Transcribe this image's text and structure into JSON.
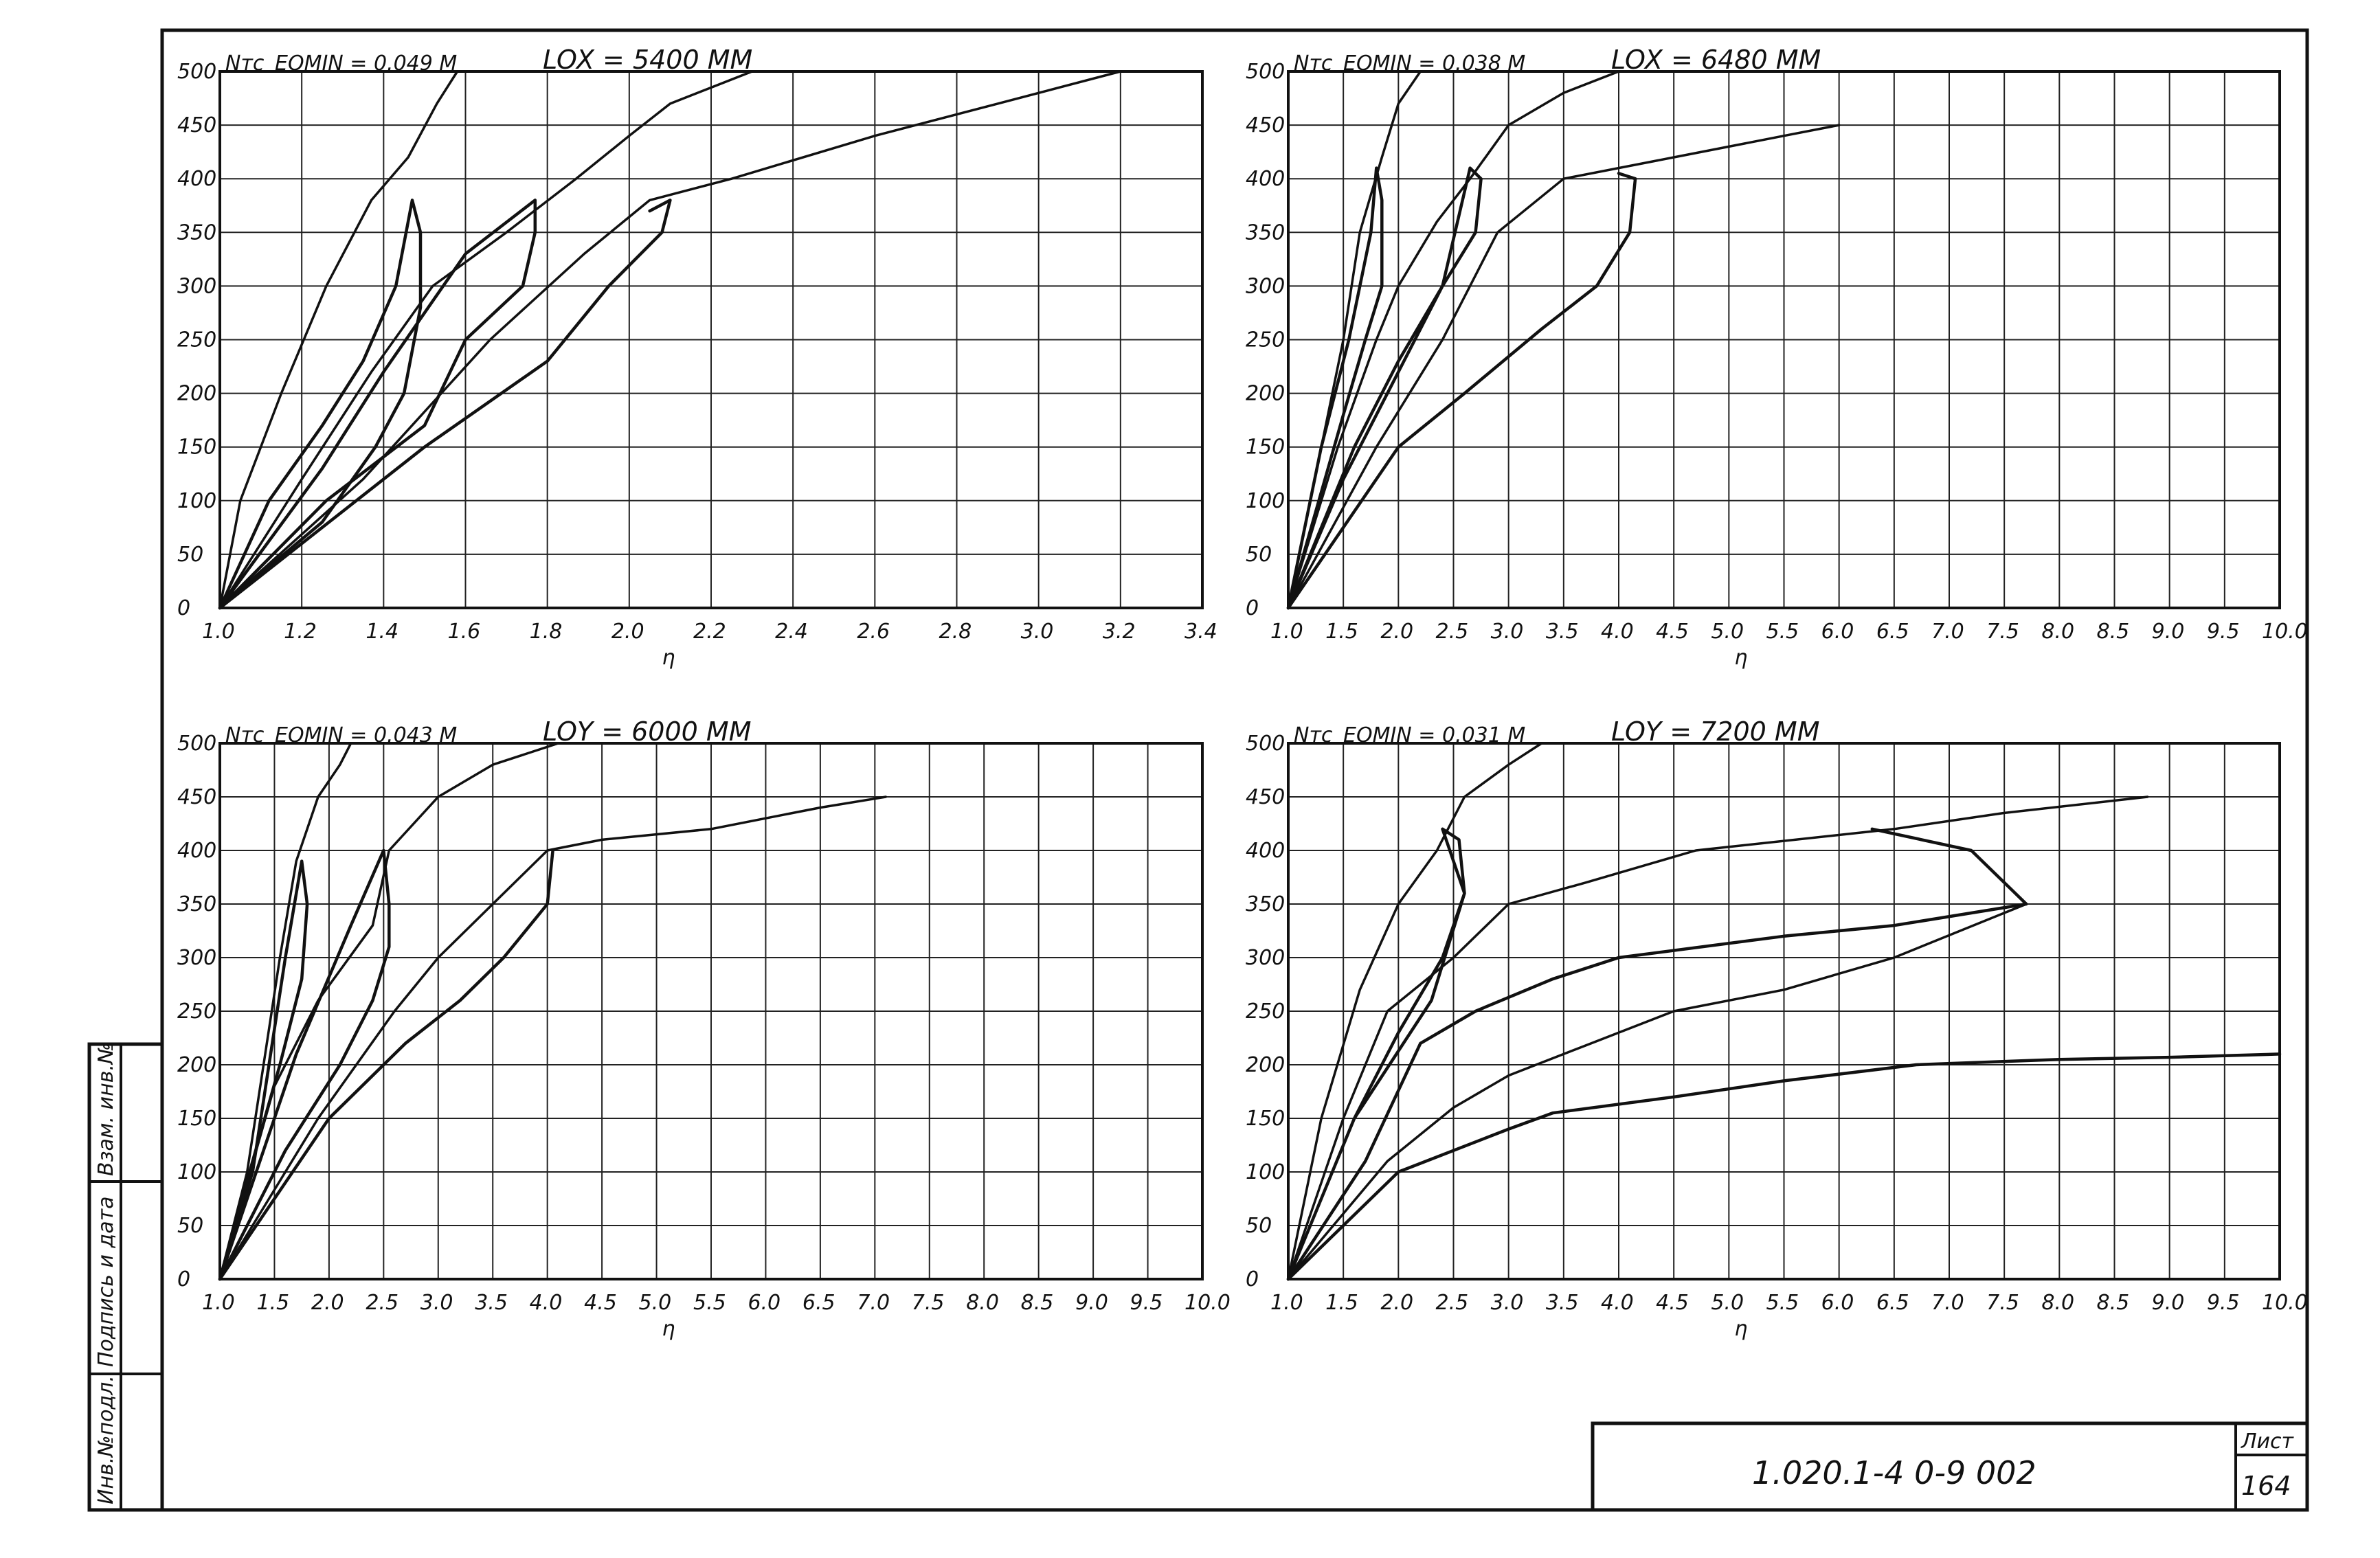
{
  "sheet": {
    "code": "1.020.1-4  0-9  002",
    "sheet_label": "Лист",
    "sheet_number": "164",
    "side_stamp": [
      "Инв.№подл.",
      "Подпись и дата",
      "Взам. инв.№"
    ]
  },
  "chart_data": [
    {
      "type": "line",
      "title": "LOX = 5400 MM",
      "corner_label": "Nтс",
      "note": "EOMIN = 0.049 M",
      "xlabel": "η",
      "xlim": [
        1.0,
        3.4
      ],
      "ylim": [
        0,
        500
      ],
      "xticks": [
        "1.0",
        "1.2",
        "1.4",
        "1.6",
        "1.8",
        "2.0",
        "2.2",
        "2.4",
        "2.6",
        "2.8",
        "3.0",
        "3.2",
        "3.4"
      ],
      "yticks": [
        "0",
        "50",
        "100",
        "150",
        "200",
        "250",
        "300",
        "350",
        "400",
        "450",
        "500"
      ],
      "series": [
        {
          "points": [
            [
              1.0,
              0
            ],
            [
              1.05,
              100
            ],
            [
              1.15,
              200
            ],
            [
              1.26,
              300
            ],
            [
              1.37,
              380
            ],
            [
              1.46,
              420
            ],
            [
              1.53,
              470
            ],
            [
              1.58,
              500
            ]
          ]
        },
        {
          "points": [
            [
              1.0,
              0
            ],
            [
              1.12,
              100
            ],
            [
              1.25,
              170
            ],
            [
              1.35,
              230
            ],
            [
              1.43,
              300
            ],
            [
              1.47,
              380
            ],
            [
              1.49,
              350
            ],
            [
              1.49,
              280
            ],
            [
              1.45,
              200
            ],
            [
              1.38,
              150
            ],
            [
              1.25,
              80
            ],
            [
              1.0,
              0
            ]
          ]
        },
        {
          "points": [
            [
              1.0,
              0
            ],
            [
              1.2,
              120
            ],
            [
              1.37,
              220
            ],
            [
              1.52,
              300
            ],
            [
              1.7,
              350
            ],
            [
              1.87,
              400
            ],
            [
              2.0,
              440
            ],
            [
              2.1,
              470
            ],
            [
              2.3,
              500
            ]
          ]
        },
        {
          "points": [
            [
              1.0,
              0
            ],
            [
              1.26,
              100
            ],
            [
              1.5,
              170
            ],
            [
              1.6,
              250
            ],
            [
              1.74,
              300
            ],
            [
              1.77,
              350
            ],
            [
              1.77,
              380
            ],
            [
              1.6,
              330
            ],
            [
              1.4,
              220
            ],
            [
              1.25,
              130
            ],
            [
              1.0,
              0
            ]
          ]
        },
        {
          "points": [
            [
              1.0,
              0
            ],
            [
              1.35,
              120
            ],
            [
              1.66,
              250
            ],
            [
              1.89,
              330
            ],
            [
              2.05,
              380
            ],
            [
              2.25,
              400
            ],
            [
              2.6,
              440
            ],
            [
              2.9,
              470
            ],
            [
              3.2,
              500
            ]
          ]
        },
        {
          "points": [
            [
              1.0,
              0
            ],
            [
              1.5,
              150
            ],
            [
              1.8,
              230
            ],
            [
              1.95,
              300
            ],
            [
              2.08,
              350
            ],
            [
              2.1,
              380
            ],
            [
              2.05,
              370
            ]
          ]
        }
      ]
    },
    {
      "type": "line",
      "title": "LOX = 6480 MM",
      "corner_label": "Nтс",
      "note": "EOMIN = 0.038 M",
      "xlabel": "η",
      "xlim": [
        1.0,
        10.0
      ],
      "ylim": [
        0,
        500
      ],
      "xticks": [
        "1.0",
        "1.5",
        "2.0",
        "2.5",
        "3.0",
        "3.5",
        "4.0",
        "4.5",
        "5.0",
        "5.5",
        "6.0",
        "6.5",
        "7.0",
        "7.5",
        "8.0",
        "8.5",
        "9.0",
        "9.5",
        "10.0"
      ],
      "yticks": [
        "0",
        "50",
        "100",
        "150",
        "200",
        "250",
        "300",
        "350",
        "400",
        "450",
        "500"
      ],
      "series": [
        {
          "points": [
            [
              1.0,
              0
            ],
            [
              1.2,
              100
            ],
            [
              1.5,
              250
            ],
            [
              1.65,
              350
            ],
            [
              1.85,
              420
            ],
            [
              2.0,
              470
            ],
            [
              2.2,
              500
            ]
          ]
        },
        {
          "points": [
            [
              1.0,
              0
            ],
            [
              1.3,
              150
            ],
            [
              1.55,
              250
            ],
            [
              1.75,
              350
            ],
            [
              1.8,
              410
            ],
            [
              1.85,
              380
            ],
            [
              1.85,
              300
            ],
            [
              1.7,
              250
            ],
            [
              1.5,
              180
            ],
            [
              1.0,
              0
            ]
          ]
        },
        {
          "points": [
            [
              1.0,
              0
            ],
            [
              1.45,
              150
            ],
            [
              1.8,
              250
            ],
            [
              2.0,
              300
            ],
            [
              2.35,
              360
            ],
            [
              2.65,
              400
            ],
            [
              3.0,
              450
            ],
            [
              3.5,
              480
            ],
            [
              4.0,
              500
            ]
          ]
        },
        {
          "points": [
            [
              1.0,
              0
            ],
            [
              1.6,
              150
            ],
            [
              2.0,
              230
            ],
            [
              2.4,
              300
            ],
            [
              2.7,
              350
            ],
            [
              2.75,
              400
            ],
            [
              2.65,
              410
            ],
            [
              2.4,
              300
            ],
            [
              2.0,
              220
            ],
            [
              1.5,
              120
            ],
            [
              1.0,
              0
            ]
          ]
        },
        {
          "points": [
            [
              1.0,
              0
            ],
            [
              1.8,
              150
            ],
            [
              2.4,
              250
            ],
            [
              2.9,
              350
            ],
            [
              3.5,
              400
            ],
            [
              4.5,
              420
            ],
            [
              5.5,
              440
            ],
            [
              6.0,
              450
            ]
          ]
        },
        {
          "points": [
            [
              1.0,
              0
            ],
            [
              2.0,
              150
            ],
            [
              2.6,
              200
            ],
            [
              3.3,
              260
            ],
            [
              3.8,
              300
            ],
            [
              4.1,
              350
            ],
            [
              4.15,
              400
            ],
            [
              4.0,
              405
            ]
          ]
        }
      ]
    },
    {
      "type": "line",
      "title": "LOY = 6000 MM",
      "corner_label": "Nтс",
      "note": "EOMIN = 0.043 M",
      "xlabel": "η",
      "xlim": [
        1.0,
        10.0
      ],
      "ylim": [
        0,
        500
      ],
      "xticks": [
        "1.0",
        "1.5",
        "2.0",
        "2.5",
        "3.0",
        "3.5",
        "4.0",
        "4.5",
        "5.0",
        "5.5",
        "6.0",
        "6.5",
        "7.0",
        "7.5",
        "8.0",
        "8.5",
        "9.0",
        "9.5",
        "10.0"
      ],
      "yticks": [
        "0",
        "50",
        "100",
        "150",
        "200",
        "250",
        "300",
        "350",
        "400",
        "450",
        "500"
      ],
      "series": [
        {
          "points": [
            [
              1.0,
              0
            ],
            [
              1.25,
              100
            ],
            [
              1.4,
              200
            ],
            [
              1.55,
              300
            ],
            [
              1.7,
              390
            ],
            [
              1.9,
              450
            ],
            [
              2.1,
              480
            ],
            [
              2.2,
              500
            ]
          ]
        },
        {
          "points": [
            [
              1.0,
              0
            ],
            [
              1.3,
              100
            ],
            [
              1.45,
              200
            ],
            [
              1.6,
              300
            ],
            [
              1.75,
              390
            ],
            [
              1.8,
              350
            ],
            [
              1.75,
              280
            ],
            [
              1.55,
              200
            ],
            [
              1.3,
              110
            ],
            [
              1.0,
              0
            ]
          ]
        },
        {
          "points": [
            [
              1.0,
              0
            ],
            [
              1.5,
              180
            ],
            [
              1.9,
              260
            ],
            [
              2.4,
              330
            ],
            [
              2.55,
              400
            ],
            [
              3.0,
              450
            ],
            [
              3.5,
              480
            ],
            [
              4.1,
              500
            ]
          ]
        },
        {
          "points": [
            [
              1.0,
              0
            ],
            [
              1.6,
              120
            ],
            [
              2.1,
              200
            ],
            [
              2.4,
              260
            ],
            [
              2.55,
              310
            ],
            [
              2.55,
              350
            ],
            [
              2.5,
              400
            ],
            [
              2.2,
              330
            ],
            [
              1.7,
              210
            ],
            [
              1.0,
              0
            ]
          ]
        },
        {
          "points": [
            [
              1.0,
              0
            ],
            [
              1.9,
              150
            ],
            [
              2.6,
              250
            ],
            [
              3.0,
              300
            ],
            [
              3.5,
              350
            ],
            [
              4.0,
              400
            ],
            [
              4.5,
              410
            ],
            [
              5.5,
              420
            ],
            [
              6.5,
              440
            ],
            [
              7.1,
              450
            ]
          ]
        },
        {
          "points": [
            [
              1.0,
              0
            ],
            [
              2.0,
              150
            ],
            [
              2.7,
              220
            ],
            [
              3.2,
              260
            ],
            [
              3.6,
              300
            ],
            [
              4.0,
              350
            ],
            [
              4.05,
              400
            ]
          ]
        }
      ]
    },
    {
      "type": "line",
      "title": "LOY = 7200 MM",
      "corner_label": "Nтс",
      "note": "EOMIN = 0.031 M",
      "xlabel": "η",
      "xlim": [
        1.0,
        10.0
      ],
      "ylim": [
        0,
        500
      ],
      "xticks": [
        "1.0",
        "1.5",
        "2.0",
        "2.5",
        "3.0",
        "3.5",
        "4.0",
        "4.5",
        "5.0",
        "5.5",
        "6.0",
        "6.5",
        "7.0",
        "7.5",
        "8.0",
        "8.5",
        "9.0",
        "9.5",
        "10.0"
      ],
      "yticks": [
        "0",
        "50",
        "100",
        "150",
        "200",
        "250",
        "300",
        "350",
        "400",
        "450",
        "500"
      ],
      "series": [
        {
          "points": [
            [
              1.0,
              0
            ],
            [
              1.3,
              150
            ],
            [
              1.65,
              270
            ],
            [
              2.0,
              350
            ],
            [
              2.35,
              400
            ],
            [
              2.6,
              450
            ],
            [
              3.0,
              480
            ],
            [
              3.3,
              500
            ]
          ]
        },
        {
          "points": [
            [
              1.0,
              0
            ],
            [
              1.6,
              150
            ],
            [
              2.0,
              230
            ],
            [
              2.4,
              300
            ],
            [
              2.6,
              360
            ],
            [
              2.55,
              410
            ],
            [
              2.4,
              420
            ],
            [
              2.6,
              360
            ],
            [
              2.3,
              260
            ],
            [
              1.6,
              150
            ],
            [
              1.0,
              0
            ]
          ]
        },
        {
          "points": [
            [
              1.0,
              0
            ],
            [
              1.5,
              150
            ],
            [
              1.9,
              250
            ],
            [
              2.5,
              300
            ],
            [
              3.0,
              350
            ],
            [
              3.7,
              370
            ],
            [
              4.7,
              400
            ],
            [
              6.5,
              420
            ],
            [
              7.5,
              435
            ],
            [
              8.8,
              450
            ]
          ]
        },
        {
          "points": [
            [
              1.0,
              0
            ],
            [
              1.7,
              110
            ],
            [
              2.2,
              220
            ],
            [
              2.7,
              250
            ],
            [
              3.4,
              280
            ],
            [
              4.0,
              300
            ],
            [
              5.5,
              320
            ],
            [
              6.5,
              330
            ],
            [
              7.7,
              350
            ],
            [
              7.2,
              400
            ],
            [
              6.3,
              420
            ]
          ]
        },
        {
          "points": [
            [
              1.0,
              0
            ],
            [
              1.9,
              110
            ],
            [
              2.5,
              160
            ],
            [
              3.0,
              190
            ],
            [
              3.5,
              210
            ],
            [
              4.5,
              250
            ],
            [
              5.5,
              270
            ],
            [
              6.5,
              300
            ],
            [
              7.7,
              350
            ]
          ]
        },
        {
          "points": [
            [
              1.0,
              0
            ],
            [
              2.0,
              100
            ],
            [
              3.0,
              140
            ],
            [
              3.4,
              155
            ],
            [
              4.5,
              170
            ],
            [
              5.5,
              185
            ],
            [
              6.7,
              200
            ],
            [
              8.0,
              205
            ],
            [
              9.0,
              207
            ],
            [
              10.0,
              210
            ]
          ]
        }
      ]
    }
  ]
}
